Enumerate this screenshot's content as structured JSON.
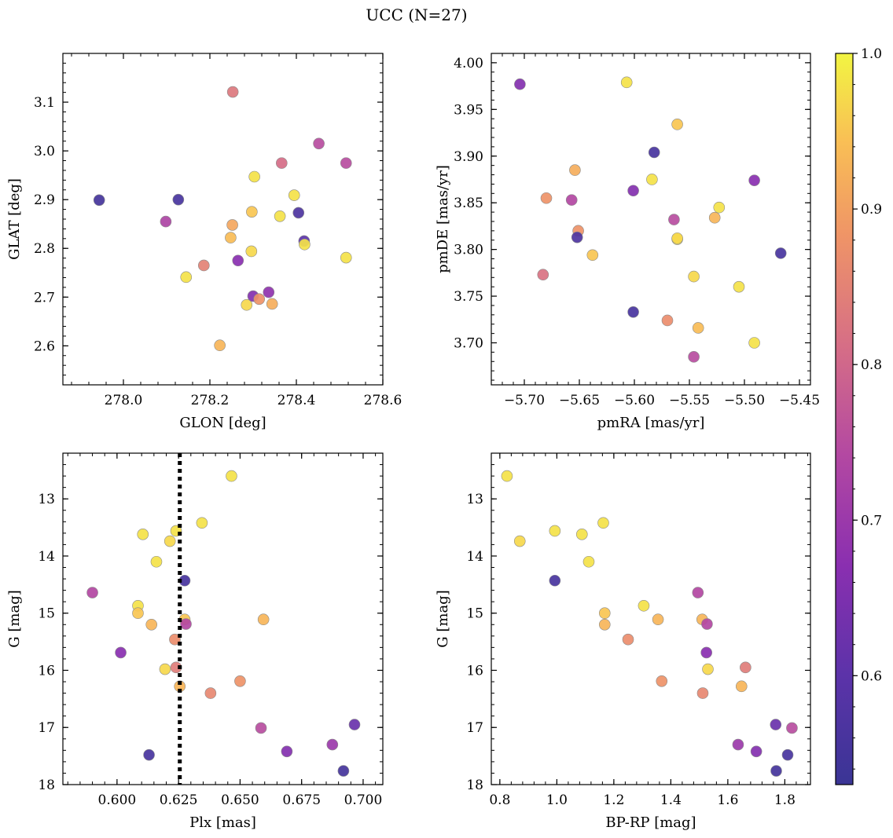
{
  "figure_title": "UCC (N=27)",
  "colorbar": {
    "ticks": [
      "0.6",
      "0.7",
      "0.8",
      "0.9",
      "1.0"
    ],
    "range": [
      0.53,
      1.0
    ],
    "colormap": "plasma"
  },
  "chart_data": [
    {
      "type": "scatter",
      "xlabel": "GLON [deg]",
      "ylabel": "GLAT [deg]",
      "xlim": [
        277.86,
        278.6
      ],
      "ylim": [
        2.52,
        3.2
      ],
      "xticks": [
        278.0,
        278.2,
        278.4,
        278.6
      ],
      "yticks": [
        2.6,
        2.7,
        2.8,
        2.9,
        3.0,
        3.1
      ],
      "xtick_labels": [
        "278.0",
        "278.2",
        "278.4",
        "278.6"
      ],
      "ytick_labels": [
        "2.6",
        "2.7",
        "2.8",
        "2.9",
        "3.0",
        "3.1"
      ],
      "points": [
        {
          "x": 277.944,
          "y": 2.899,
          "c": 0.55
        },
        {
          "x": 278.127,
          "y": 2.9,
          "c": 0.56
        },
        {
          "x": 278.098,
          "y": 2.855,
          "c": 0.73
        },
        {
          "x": 278.253,
          "y": 3.121,
          "c": 0.83
        },
        {
          "x": 278.145,
          "y": 2.741,
          "c": 0.98
        },
        {
          "x": 278.186,
          "y": 2.765,
          "c": 0.85
        },
        {
          "x": 278.223,
          "y": 2.601,
          "c": 0.93
        },
        {
          "x": 278.248,
          "y": 2.822,
          "c": 0.94
        },
        {
          "x": 278.252,
          "y": 2.848,
          "c": 0.91
        },
        {
          "x": 278.265,
          "y": 2.775,
          "c": 0.67
        },
        {
          "x": 278.285,
          "y": 2.684,
          "c": 0.97
        },
        {
          "x": 278.296,
          "y": 2.794,
          "c": 0.97
        },
        {
          "x": 278.297,
          "y": 2.875,
          "c": 0.95
        },
        {
          "x": 278.3,
          "y": 2.702,
          "c": 0.66
        },
        {
          "x": 278.303,
          "y": 2.947,
          "c": 0.98
        },
        {
          "x": 278.314,
          "y": 2.696,
          "c": 0.88
        },
        {
          "x": 278.336,
          "y": 2.71,
          "c": 0.68
        },
        {
          "x": 278.344,
          "y": 2.686,
          "c": 0.92
        },
        {
          "x": 278.362,
          "y": 2.866,
          "c": 0.98
        },
        {
          "x": 278.366,
          "y": 2.975,
          "c": 0.81
        },
        {
          "x": 278.395,
          "y": 2.909,
          "c": 0.98
        },
        {
          "x": 278.405,
          "y": 2.873,
          "c": 0.57
        },
        {
          "x": 278.418,
          "y": 2.815,
          "c": 0.6
        },
        {
          "x": 278.419,
          "y": 2.808,
          "c": 0.98
        },
        {
          "x": 278.452,
          "y": 3.015,
          "c": 0.75
        },
        {
          "x": 278.515,
          "y": 2.975,
          "c": 0.75
        },
        {
          "x": 278.515,
          "y": 2.781,
          "c": 0.98
        }
      ]
    },
    {
      "type": "scatter",
      "xlabel": "pmRA [mas/yr]",
      "ylabel": "pmDE [mas/yr]",
      "xlim": [
        -5.73,
        -5.44
      ],
      "ylim": [
        3.655,
        4.01
      ],
      "xticks": [
        -5.7,
        -5.65,
        -5.6,
        -5.55,
        -5.5,
        -5.45
      ],
      "yticks": [
        3.7,
        3.75,
        3.8,
        3.85,
        3.9,
        3.95,
        4.0
      ],
      "xtick_labels": [
        "−5.70",
        "−5.65",
        "−5.60",
        "−5.55",
        "−5.50",
        "−5.45"
      ],
      "ytick_labels": [
        "3.70",
        "3.75",
        "3.80",
        "3.85",
        "3.90",
        "3.95",
        "4.00"
      ],
      "points": [
        {
          "x": -5.704,
          "y": 3.977,
          "c": 0.66
        },
        {
          "x": -5.607,
          "y": 3.979,
          "c": 0.98
        },
        {
          "x": -5.561,
          "y": 3.934,
          "c": 0.95
        },
        {
          "x": -5.582,
          "y": 3.904,
          "c": 0.56
        },
        {
          "x": -5.654,
          "y": 3.885,
          "c": 0.92
        },
        {
          "x": -5.584,
          "y": 3.875,
          "c": 0.98
        },
        {
          "x": -5.491,
          "y": 3.874,
          "c": 0.67
        },
        {
          "x": -5.601,
          "y": 3.863,
          "c": 0.66
        },
        {
          "x": -5.68,
          "y": 3.855,
          "c": 0.88
        },
        {
          "x": -5.657,
          "y": 3.853,
          "c": 0.74
        },
        {
          "x": -5.523,
          "y": 3.845,
          "c": 0.98
        },
        {
          "x": -5.527,
          "y": 3.834,
          "c": 0.93
        },
        {
          "x": -5.564,
          "y": 3.832,
          "c": 0.75
        },
        {
          "x": -5.651,
          "y": 3.82,
          "c": 0.88
        },
        {
          "x": -5.652,
          "y": 3.813,
          "c": 0.57
        },
        {
          "x": -5.561,
          "y": 3.811,
          "c": 0.98
        },
        {
          "x": -5.561,
          "y": 3.812,
          "c": 0.97
        },
        {
          "x": -5.467,
          "y": 3.796,
          "c": 0.56
        },
        {
          "x": -5.638,
          "y": 3.794,
          "c": 0.95
        },
        {
          "x": -5.683,
          "y": 3.773,
          "c": 0.82
        },
        {
          "x": -5.546,
          "y": 3.771,
          "c": 0.97
        },
        {
          "x": -5.505,
          "y": 3.76,
          "c": 0.98
        },
        {
          "x": -5.601,
          "y": 3.733,
          "c": 0.56
        },
        {
          "x": -5.57,
          "y": 3.724,
          "c": 0.87
        },
        {
          "x": -5.542,
          "y": 3.716,
          "c": 0.94
        },
        {
          "x": -5.491,
          "y": 3.7,
          "c": 0.98
        },
        {
          "x": -5.546,
          "y": 3.685,
          "c": 0.75
        }
      ]
    },
    {
      "type": "scatter",
      "xlabel": "Plx [mas]",
      "ylabel": "G [mag]",
      "xlim": [
        0.578,
        0.708
      ],
      "ylim": [
        18.0,
        12.2
      ],
      "y_inverted": true,
      "vline": {
        "x": 0.6255,
        "style": "dotted"
      },
      "xticks": [
        0.6,
        0.625,
        0.65,
        0.675,
        0.7
      ],
      "yticks": [
        13,
        14,
        15,
        16,
        17,
        18
      ],
      "xtick_labels": [
        "0.600",
        "0.625",
        "0.650",
        "0.675",
        "0.700"
      ],
      "ytick_labels": [
        "13",
        "14",
        "15",
        "16",
        "17",
        "18"
      ],
      "points": [
        {
          "x": 0.6465,
          "y": 12.6,
          "c": 0.98
        },
        {
          "x": 0.6345,
          "y": 13.42,
          "c": 0.98
        },
        {
          "x": 0.6105,
          "y": 13.62,
          "c": 0.98
        },
        {
          "x": 0.624,
          "y": 13.56,
          "c": 0.98
        },
        {
          "x": 0.6215,
          "y": 13.74,
          "c": 0.97
        },
        {
          "x": 0.616,
          "y": 14.1,
          "c": 0.98
        },
        {
          "x": 0.6275,
          "y": 14.43,
          "c": 0.56
        },
        {
          "x": 0.59,
          "y": 14.64,
          "c": 0.74
        },
        {
          "x": 0.6085,
          "y": 14.87,
          "c": 0.98
        },
        {
          "x": 0.6085,
          "y": 15.0,
          "c": 0.95
        },
        {
          "x": 0.6275,
          "y": 15.11,
          "c": 0.95
        },
        {
          "x": 0.6595,
          "y": 15.11,
          "c": 0.93
        },
        {
          "x": 0.614,
          "y": 15.2,
          "c": 0.93
        },
        {
          "x": 0.628,
          "y": 15.19,
          "c": 0.74
        },
        {
          "x": 0.6235,
          "y": 15.46,
          "c": 0.87
        },
        {
          "x": 0.6015,
          "y": 15.69,
          "c": 0.67
        },
        {
          "x": 0.624,
          "y": 15.95,
          "c": 0.84
        },
        {
          "x": 0.6195,
          "y": 15.98,
          "c": 0.97
        },
        {
          "x": 0.65,
          "y": 16.19,
          "c": 0.88
        },
        {
          "x": 0.6255,
          "y": 16.28,
          "c": 0.93
        },
        {
          "x": 0.638,
          "y": 16.4,
          "c": 0.86
        },
        {
          "x": 0.6965,
          "y": 16.95,
          "c": 0.62
        },
        {
          "x": 0.6585,
          "y": 17.01,
          "c": 0.75
        },
        {
          "x": 0.6875,
          "y": 17.3,
          "c": 0.7
        },
        {
          "x": 0.669,
          "y": 17.42,
          "c": 0.66
        },
        {
          "x": 0.613,
          "y": 17.48,
          "c": 0.56
        },
        {
          "x": 0.692,
          "y": 17.76,
          "c": 0.55
        }
      ]
    },
    {
      "type": "scatter",
      "xlabel": "BP-RP [mag]",
      "ylabel": "G [mag]",
      "xlim": [
        0.77,
        1.89
      ],
      "ylim": [
        18.0,
        12.2
      ],
      "y_inverted": true,
      "xticks": [
        0.8,
        1.0,
        1.2,
        1.4,
        1.6,
        1.8
      ],
      "yticks": [
        13,
        14,
        15,
        16,
        17,
        18
      ],
      "xtick_labels": [
        "0.8",
        "1.0",
        "1.2",
        "1.4",
        "1.6",
        "1.8"
      ],
      "ytick_labels": [
        "13",
        "14",
        "15",
        "16",
        "17",
        "18"
      ],
      "points": [
        {
          "x": 0.825,
          "y": 12.6,
          "c": 0.98
        },
        {
          "x": 0.87,
          "y": 13.74,
          "c": 0.97
        },
        {
          "x": 0.993,
          "y": 13.56,
          "c": 0.98
        },
        {
          "x": 1.088,
          "y": 13.62,
          "c": 0.98
        },
        {
          "x": 1.163,
          "y": 13.42,
          "c": 0.98
        },
        {
          "x": 1.112,
          "y": 14.1,
          "c": 0.98
        },
        {
          "x": 0.993,
          "y": 14.43,
          "c": 0.56
        },
        {
          "x": 1.495,
          "y": 14.64,
          "c": 0.74
        },
        {
          "x": 1.305,
          "y": 14.87,
          "c": 0.98
        },
        {
          "x": 1.168,
          "y": 15.0,
          "c": 0.95
        },
        {
          "x": 1.355,
          "y": 15.11,
          "c": 0.93
        },
        {
          "x": 1.51,
          "y": 15.11,
          "c": 0.93
        },
        {
          "x": 1.168,
          "y": 15.2,
          "c": 0.93
        },
        {
          "x": 1.527,
          "y": 15.19,
          "c": 0.74
        },
        {
          "x": 1.25,
          "y": 15.46,
          "c": 0.87
        },
        {
          "x": 1.525,
          "y": 15.69,
          "c": 0.67
        },
        {
          "x": 1.53,
          "y": 15.98,
          "c": 0.97
        },
        {
          "x": 1.662,
          "y": 15.95,
          "c": 0.84
        },
        {
          "x": 1.368,
          "y": 16.19,
          "c": 0.88
        },
        {
          "x": 1.512,
          "y": 16.4,
          "c": 0.86
        },
        {
          "x": 1.648,
          "y": 16.28,
          "c": 0.93
        },
        {
          "x": 1.768,
          "y": 16.95,
          "c": 0.62
        },
        {
          "x": 1.825,
          "y": 17.01,
          "c": 0.75
        },
        {
          "x": 1.636,
          "y": 17.3,
          "c": 0.7
        },
        {
          "x": 1.7,
          "y": 17.42,
          "c": 0.66
        },
        {
          "x": 1.81,
          "y": 17.48,
          "c": 0.56
        },
        {
          "x": 1.77,
          "y": 17.76,
          "c": 0.55
        }
      ]
    }
  ]
}
